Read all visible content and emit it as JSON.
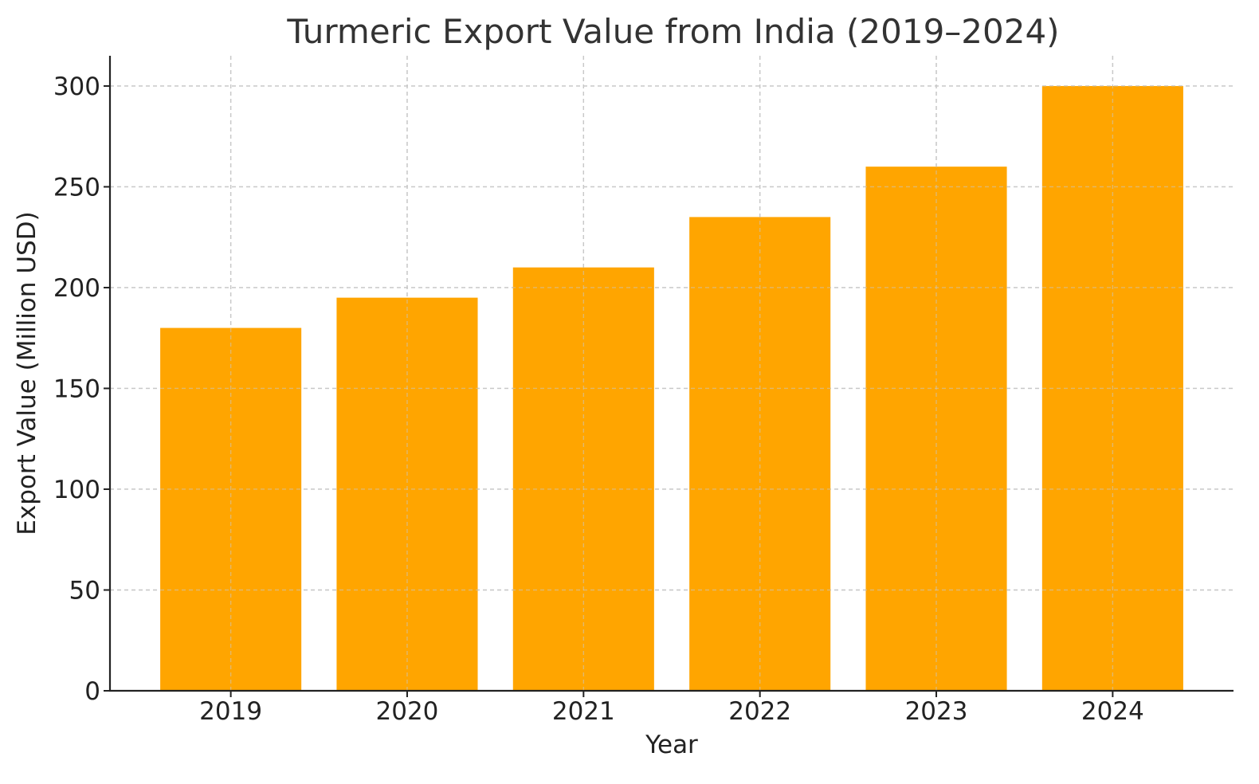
{
  "chart_data": {
    "type": "bar",
    "title": "Turmeric Export Value from India (2019–2024)",
    "xlabel": "Year",
    "ylabel": "Export Value (Million USD)",
    "categories": [
      "2019",
      "2020",
      "2021",
      "2022",
      "2023",
      "2024"
    ],
    "values": [
      180,
      195,
      210,
      235,
      260,
      300
    ],
    "ylim": [
      0,
      315
    ],
    "yticks": [
      0,
      50,
      100,
      150,
      200,
      250,
      300
    ],
    "ytick_labels": [
      "0",
      "50",
      "100",
      "150",
      "200",
      "250",
      "300"
    ],
    "grid": true,
    "bar_color": "#FFA500"
  }
}
